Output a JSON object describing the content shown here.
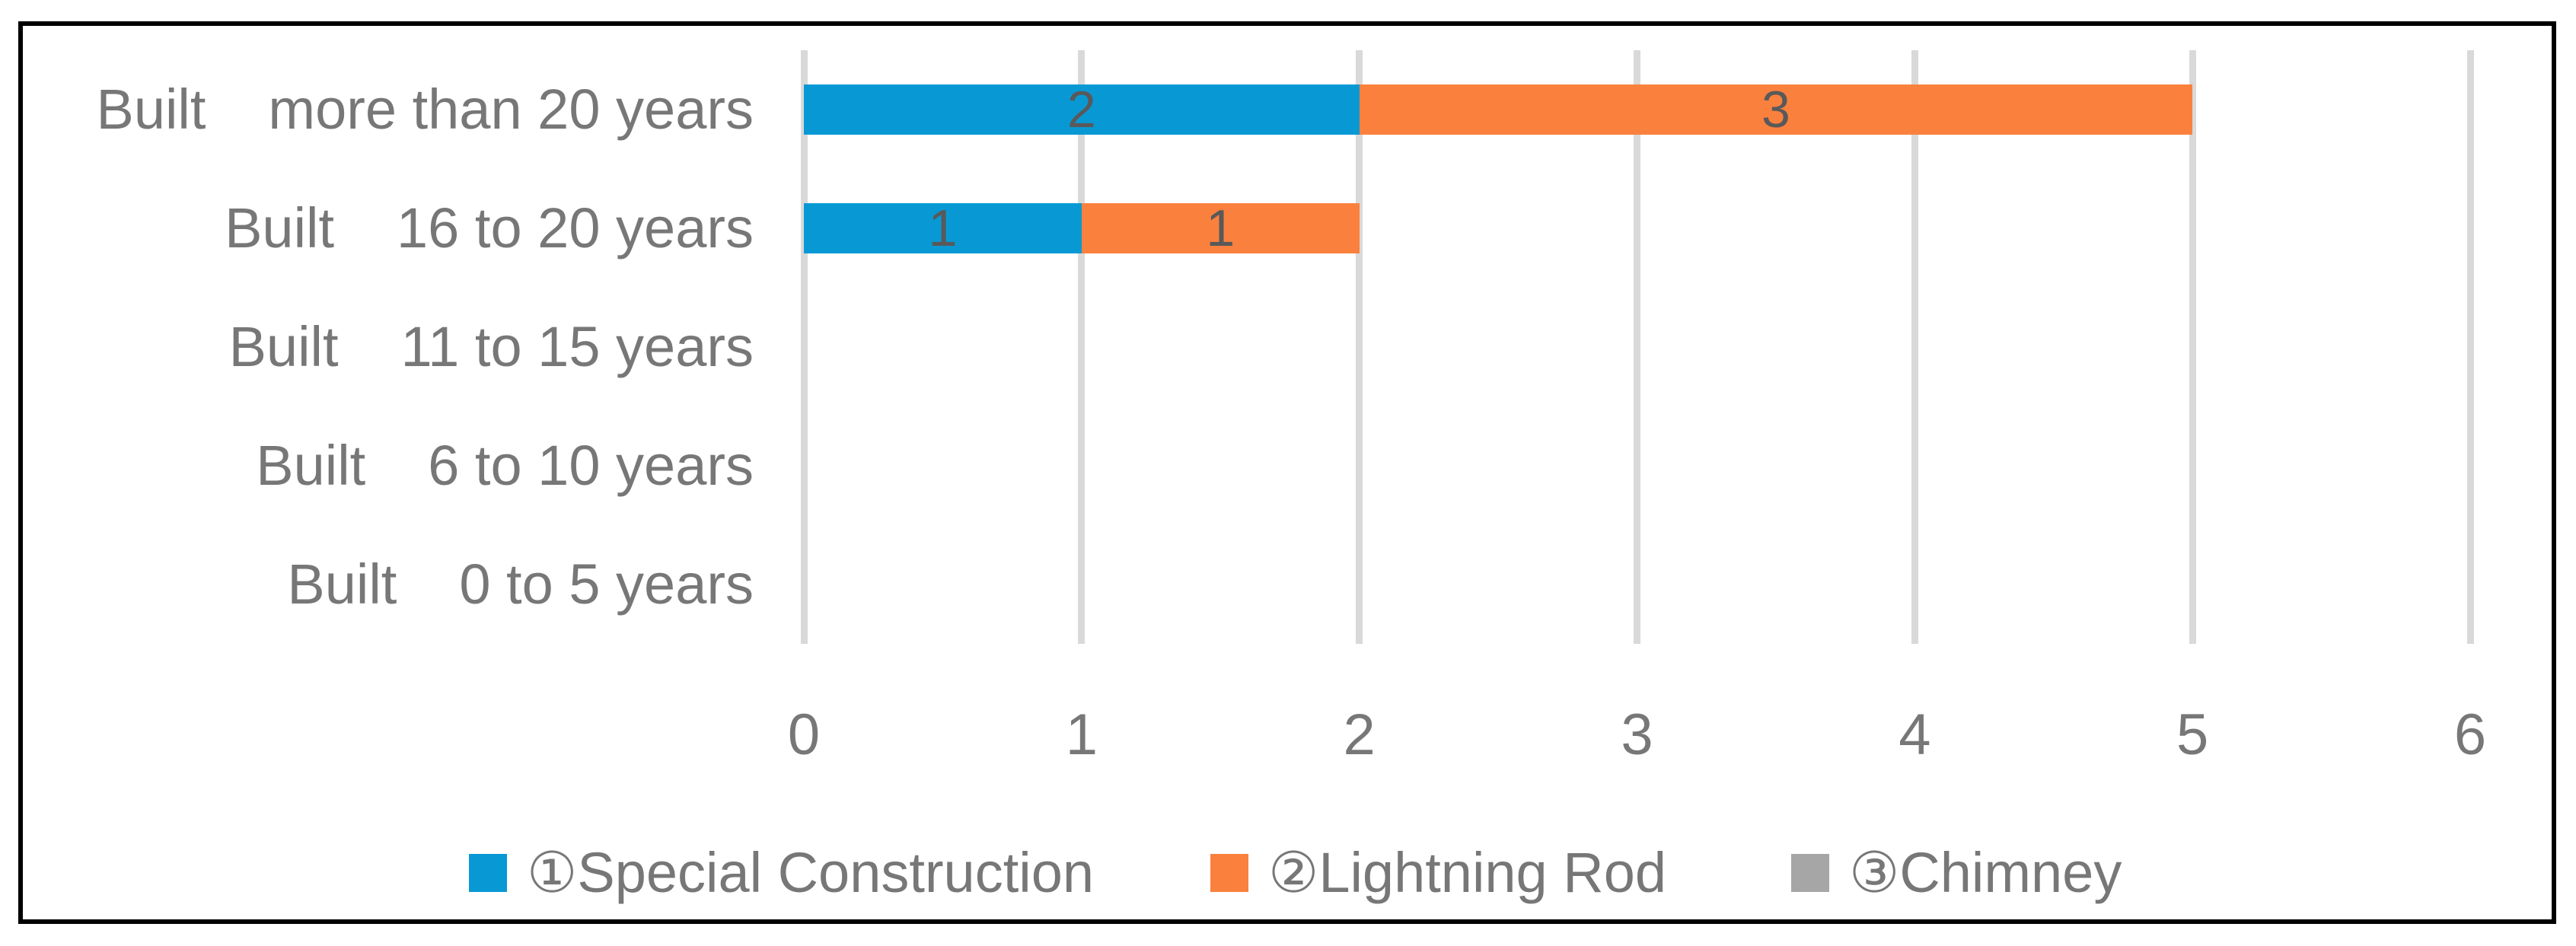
{
  "chart_data": {
    "type": "bar",
    "orientation": "horizontal-stacked",
    "title": "",
    "xlabel": "",
    "ylabel": "",
    "categories": [
      {
        "prefix": "Built",
        "text": "more than 20 years",
        "label": "Built  more than 20 years"
      },
      {
        "prefix": "Built",
        "text": "16 to 20 years",
        "label": "Built  16 to 20 years"
      },
      {
        "prefix": "Built",
        "text": "11 to 15 years",
        "label": "Built  11 to 15 years"
      },
      {
        "prefix": "Built",
        "text": "6 to 10 years",
        "label": "Built  6 to 10 years"
      },
      {
        "prefix": "Built",
        "text": "0 to 5 years",
        "label": "Built  0 to 5 years"
      }
    ],
    "series": [
      {
        "name": "①Special Construction",
        "color": "#0899D5",
        "values": [
          2,
          1,
          0,
          0,
          0
        ]
      },
      {
        "name": "②Lightning Rod",
        "color": "#FA813D",
        "values": [
          3,
          1,
          0,
          0,
          0
        ]
      },
      {
        "name": "③Chimney",
        "color": "#A6A6A6",
        "values": [
          0,
          0,
          0,
          0,
          0
        ]
      }
    ],
    "xlim": [
      0,
      6
    ],
    "xticks": [
      "0",
      "1",
      "2",
      "3",
      "4",
      "5",
      "6"
    ],
    "grid": "vertical",
    "legend_position": "bottom",
    "data_labels_shown": true,
    "colors": {
      "data_label": "#595959",
      "axis_text": "#777777",
      "gridline": "#D9D9D9",
      "border": "#000000",
      "background": "#FFFFFF"
    }
  }
}
